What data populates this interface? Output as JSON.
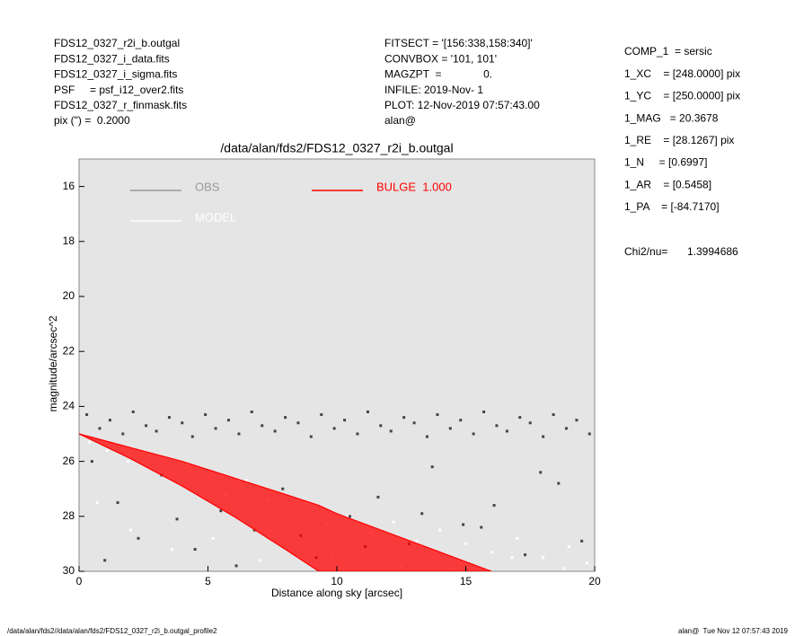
{
  "info_left": [
    "FDS12_0327_r2i_b.outgal",
    "FDS12_0327_i_data.fits",
    "FDS12_0327_i_sigma.fits",
    "PSF     = psf_i12_over2.fits",
    "FDS12_0327_r_finmask.fits",
    "pix (\") =  0.2000"
  ],
  "info_middle": [
    "FITSECT = '[156:338,158:340]'",
    "CONVBOX = '101, 101'",
    "MAGZPT  =              0.",
    "INFILE: 2019-Nov- 1",
    "PLOT: 12-Nov-2019 07:57:43.00",
    "alan@"
  ],
  "info_right": [
    "COMP_1  = sersic",
    "1_XC    = [248.0000] pix",
    "1_YC    = [250.0000] pix",
    "1_MAG   = 20.3678",
    "1_RE    = [28.1267] pix",
    "1_N     = [0.6997]",
    "1_AR    = [0.5458]",
    "1_PA    = [-84.7170]"
  ],
  "chi2_label": "Chi2/nu=",
  "chi2_value": "1.3994686",
  "footer_left": "/data/alan/fds2//data/alan/fds2/FDS12_0327_r2i_b.outgal_profile2",
  "footer_right": "alan@  Tue Nov 12 07:57:43 2019",
  "chart_data": {
    "type": "scatter",
    "title": "/data/alan/fds2/FDS12_0327_r2i_b.outgal",
    "x_label": "Distance along sky [arcsec]",
    "y_label": "magnitude/arcsec^2",
    "xlim": [
      0,
      20
    ],
    "xticks": [
      0,
      5,
      10,
      15,
      20
    ],
    "ylim": [
      30,
      15
    ],
    "yticks": [
      16,
      18,
      20,
      22,
      24,
      26,
      28,
      30
    ],
    "background": "#e5e5e5",
    "series": [
      {
        "name": "OBS",
        "color": "#444444",
        "legend_color": "#999999",
        "x": [
          0.3,
          0.8,
          1.2,
          1.7,
          2.1,
          2.6,
          3.0,
          3.5,
          4.0,
          4.4,
          4.9,
          5.3,
          5.8,
          6.2,
          6.7,
          7.1,
          7.6,
          8.0,
          8.5,
          9.0,
          9.4,
          9.9,
          10.3,
          10.8,
          11.2,
          11.7,
          12.1,
          12.6,
          13.0,
          13.5,
          13.9,
          14.4,
          14.8,
          15.3,
          15.7,
          16.2,
          16.6,
          17.1,
          17.5,
          18.0,
          18.4,
          18.9,
          19.3,
          19.8,
          0.5,
          1.5,
          2.3,
          3.2,
          4.5,
          5.5,
          6.8,
          7.9,
          9.2,
          10.5,
          11.6,
          12.8,
          13.7,
          14.9,
          16.1,
          17.3,
          18.6,
          19.5,
          1.0,
          3.8,
          6.1,
          8.6,
          11.1,
          13.3,
          15.6,
          17.9
        ],
        "values": [
          24.3,
          24.8,
          24.5,
          25.0,
          24.2,
          24.7,
          24.9,
          24.4,
          24.6,
          25.1,
          24.3,
          24.8,
          24.5,
          25.0,
          24.2,
          24.7,
          24.9,
          24.4,
          24.6,
          25.1,
          24.3,
          24.8,
          24.5,
          25.0,
          24.2,
          24.7,
          24.9,
          24.4,
          24.6,
          25.1,
          24.3,
          24.8,
          24.5,
          25.0,
          24.2,
          24.7,
          24.9,
          24.4,
          24.6,
          25.1,
          24.3,
          24.8,
          24.5,
          25.0,
          26.0,
          27.5,
          28.8,
          26.5,
          29.2,
          27.8,
          28.5,
          27.0,
          29.5,
          28.0,
          27.3,
          29.0,
          26.2,
          28.3,
          27.6,
          29.4,
          26.8,
          28.9,
          29.6,
          28.1,
          29.8,
          28.7,
          29.1,
          27.9,
          28.4,
          26.4
        ]
      },
      {
        "name": "MODEL",
        "color": "#ffffff",
        "legend_color": "#ffffff",
        "x": [
          0.4,
          1.1,
          1.9,
          2.7,
          3.4,
          4.2,
          5.0,
          5.7,
          6.5,
          7.3,
          8.1,
          8.8,
          9.6,
          10.4,
          11.3,
          12.2,
          13.1,
          14.0,
          15.0,
          16.0,
          17.0,
          18.0,
          19.0,
          19.7,
          0.7,
          2.0,
          3.6,
          5.2,
          7.0,
          9.8,
          12.5,
          14.5,
          16.8,
          18.8
        ],
        "values": [
          25.3,
          25.6,
          26.0,
          25.8,
          26.4,
          26.1,
          26.9,
          27.2,
          26.7,
          27.4,
          27.9,
          27.5,
          28.3,
          28.0,
          28.6,
          28.2,
          28.9,
          28.5,
          29.0,
          29.3,
          28.8,
          29.5,
          29.1,
          29.7,
          27.5,
          28.5,
          29.2,
          28.8,
          29.6,
          29.4,
          29.8,
          29.9,
          29.5,
          29.9
        ]
      },
      {
        "name": "BULGE  1.000",
        "color": "#ff0000",
        "legend_color": "#ff0000",
        "x": [
          0,
          2,
          4,
          6,
          8,
          9.3,
          10,
          12,
          14,
          16
        ],
        "values": [
          25,
          25.5,
          26,
          26.6,
          27.2,
          27.6,
          27.9,
          28.6,
          29.3,
          30
        ],
        "values_low": [
          25,
          25.9,
          26.9,
          28,
          29.2,
          30,
          30,
          30,
          30,
          30
        ]
      }
    ]
  }
}
